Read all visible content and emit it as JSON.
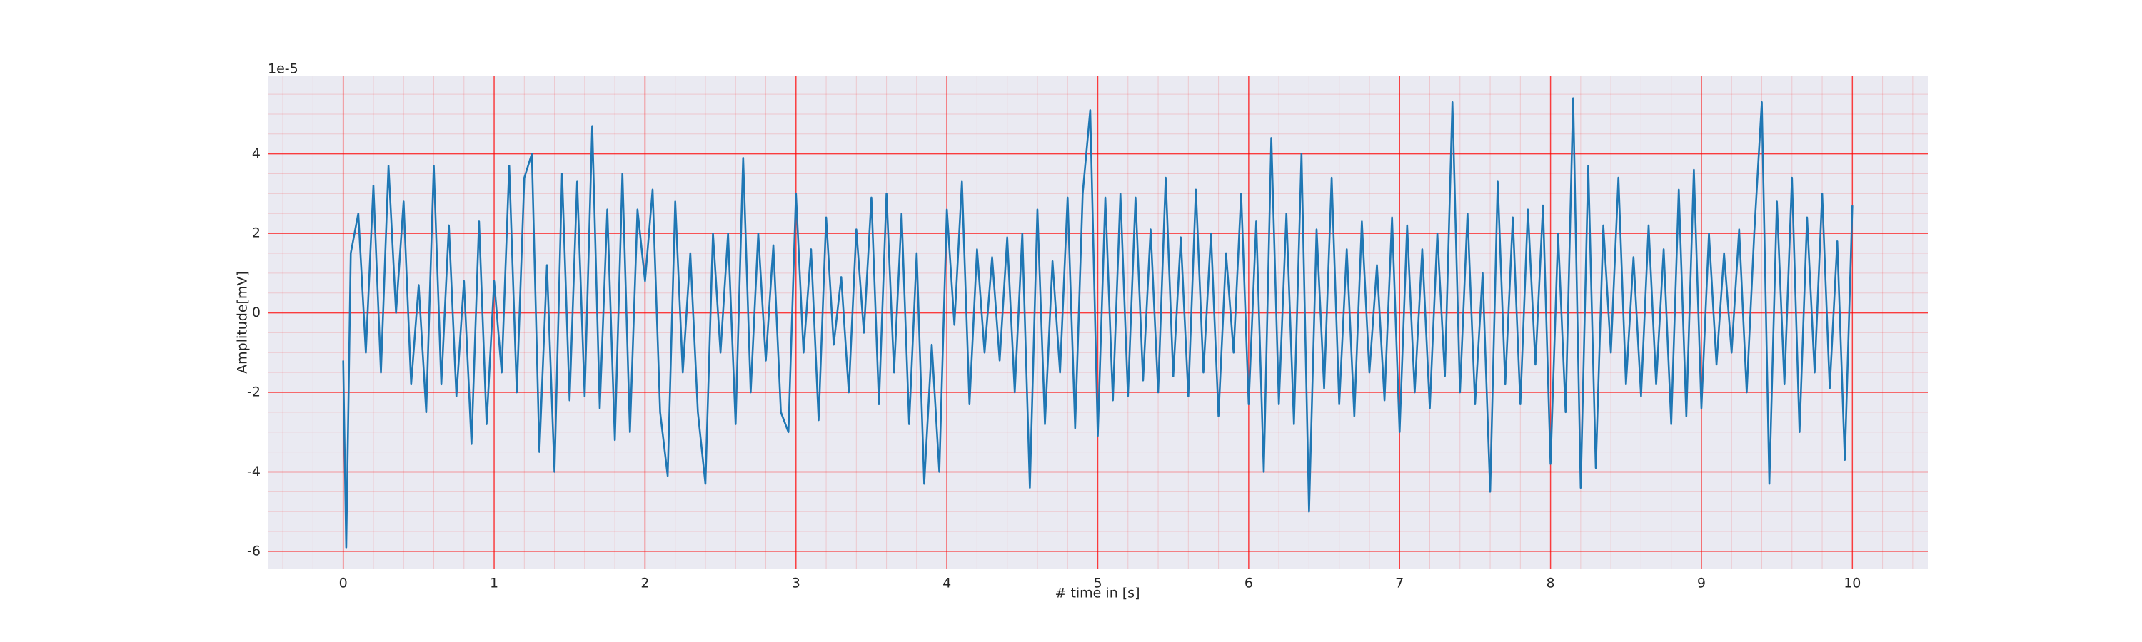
{
  "chart_data": {
    "type": "line",
    "xlabel": "# time in [s]",
    "ylabel": "Amplitude[mV]",
    "offset_label": "1e-5",
    "x": [
      0,
      0.02,
      0.05,
      0.1,
      0.15,
      0.2,
      0.25,
      0.3,
      0.35,
      0.4,
      0.45,
      0.5,
      0.55,
      0.6,
      0.65,
      0.7,
      0.75,
      0.8,
      0.85,
      0.9,
      0.95,
      1,
      1.05,
      1.1,
      1.15,
      1.2,
      1.25,
      1.3,
      1.35,
      1.4,
      1.45,
      1.5,
      1.55,
      1.6,
      1.65,
      1.7,
      1.75,
      1.8,
      1.85,
      1.9,
      1.95,
      2,
      2.05,
      2.1,
      2.15,
      2.2,
      2.25,
      2.3,
      2.35,
      2.4,
      2.45,
      2.5,
      2.55,
      2.6,
      2.65,
      2.7,
      2.75,
      2.8,
      2.85,
      2.9,
      2.95,
      3,
      3.05,
      3.1,
      3.15,
      3.2,
      3.25,
      3.3,
      3.35,
      3.4,
      3.45,
      3.5,
      3.55,
      3.6,
      3.65,
      3.7,
      3.75,
      3.8,
      3.85,
      3.9,
      3.95,
      4,
      4.05,
      4.1,
      4.15,
      4.2,
      4.25,
      4.3,
      4.35,
      4.4,
      4.45,
      4.5,
      4.55,
      4.6,
      4.65,
      4.7,
      4.75,
      4.8,
      4.85,
      4.9,
      4.95,
      5,
      5.05,
      5.1,
      5.15,
      5.2,
      5.25,
      5.3,
      5.35,
      5.4,
      5.45,
      5.5,
      5.55,
      5.6,
      5.65,
      5.7,
      5.75,
      5.8,
      5.85,
      5.9,
      5.95,
      6,
      6.05,
      6.1,
      6.15,
      6.2,
      6.25,
      6.3,
      6.35,
      6.4,
      6.45,
      6.5,
      6.55,
      6.6,
      6.65,
      6.7,
      6.75,
      6.8,
      6.85,
      6.9,
      6.95,
      7,
      7.05,
      7.1,
      7.15,
      7.2,
      7.25,
      7.3,
      7.35,
      7.4,
      7.45,
      7.5,
      7.55,
      7.6,
      7.65,
      7.7,
      7.75,
      7.8,
      7.85,
      7.9,
      7.95,
      8,
      8.05,
      8.1,
      8.15,
      8.2,
      8.25,
      8.3,
      8.35,
      8.4,
      8.45,
      8.5,
      8.55,
      8.6,
      8.65,
      8.7,
      8.75,
      8.8,
      8.85,
      8.9,
      8.95,
      9,
      9.05,
      9.1,
      9.15,
      9.2,
      9.25,
      9.3,
      9.35,
      9.4,
      9.45,
      9.5,
      9.55,
      9.6,
      9.65,
      9.7,
      9.75,
      9.8,
      9.85,
      9.9,
      9.95,
      10
    ],
    "series": [
      {
        "color": "#1f77b4",
        "values": [
          -1.2,
          -5.9,
          1.5,
          2.5,
          -1.0,
          3.2,
          -1.5,
          3.7,
          0.0,
          2.8,
          -1.8,
          0.7,
          -2.5,
          3.7,
          -1.8,
          2.2,
          -2.1,
          0.8,
          -3.3,
          2.3,
          -2.8,
          0.8,
          -1.5,
          3.7,
          -2.0,
          3.4,
          4.0,
          -3.5,
          1.2,
          -4.0,
          3.5,
          -2.2,
          3.3,
          -2.1,
          4.7,
          -2.4,
          2.6,
          -3.2,
          3.5,
          -3.0,
          2.6,
          0.8,
          3.1,
          -2.5,
          -4.1,
          2.8,
          -1.5,
          1.5,
          -2.5,
          -4.3,
          2.0,
          -1.0,
          2.0,
          -2.8,
          3.9,
          -2.0,
          2.0,
          -1.2,
          1.7,
          -2.5,
          -3.0,
          3.0,
          -1.0,
          1.6,
          -2.7,
          2.4,
          -0.8,
          0.9,
          -2.0,
          2.1,
          -0.5,
          2.9,
          -2.3,
          3.0,
          -1.5,
          2.5,
          -2.8,
          1.5,
          -4.3,
          -0.8,
          -4.0,
          2.6,
          -0.3,
          3.3,
          -2.3,
          1.6,
          -1.0,
          1.4,
          -1.2,
          1.9,
          -2.0,
          2.0,
          -4.4,
          2.6,
          -2.8,
          1.3,
          -1.5,
          2.9,
          -2.9,
          3.0,
          5.1,
          -3.1,
          2.9,
          -2.2,
          3.0,
          -2.1,
          2.9,
          -1.7,
          2.1,
          -2.0,
          3.4,
          -1.6,
          1.9,
          -2.1,
          3.1,
          -1.5,
          2.0,
          -2.6,
          1.5,
          -1.0,
          3.0,
          -2.3,
          2.3,
          -4.0,
          4.4,
          -2.3,
          2.5,
          -2.8,
          4.0,
          -5.0,
          2.1,
          -1.9,
          3.4,
          -2.3,
          1.6,
          -2.6,
          2.3,
          -1.5,
          1.2,
          -2.2,
          2.4,
          -3.0,
          2.2,
          -2.0,
          1.6,
          -2.4,
          2.0,
          -1.6,
          5.3,
          -2.0,
          2.5,
          -2.3,
          1.0,
          -4.5,
          3.3,
          -1.8,
          2.4,
          -2.3,
          2.6,
          -1.3,
          2.7,
          -3.8,
          2.0,
          -2.5,
          5.4,
          -4.4,
          3.7,
          -3.9,
          2.2,
          -1.0,
          3.4,
          -1.8,
          1.4,
          -2.1,
          2.2,
          -1.8,
          1.6,
          -2.8,
          3.1,
          -2.6,
          3.6,
          -2.4,
          2.0,
          -1.3,
          1.5,
          -1.0,
          2.1,
          -2.0,
          2.0,
          5.3,
          -4.3,
          2.8,
          -1.8,
          3.4,
          -3.0,
          2.4,
          -1.5,
          3.0,
          -1.9,
          1.8,
          -3.7,
          2.7
        ]
      }
    ],
    "xlim": [
      -0.5,
      10.5
    ],
    "ylim": [
      -6.45,
      5.95
    ],
    "xticks": [
      0,
      1,
      2,
      3,
      4,
      5,
      6,
      7,
      8,
      9,
      10
    ],
    "yticks": [
      -6,
      -4,
      -2,
      0,
      2,
      4
    ],
    "grid": true,
    "grid_color": "#ff0000",
    "minor_grid": true,
    "minor_xstep": 0.2,
    "minor_ystep": 0.5,
    "background": "#eaeaf2"
  }
}
